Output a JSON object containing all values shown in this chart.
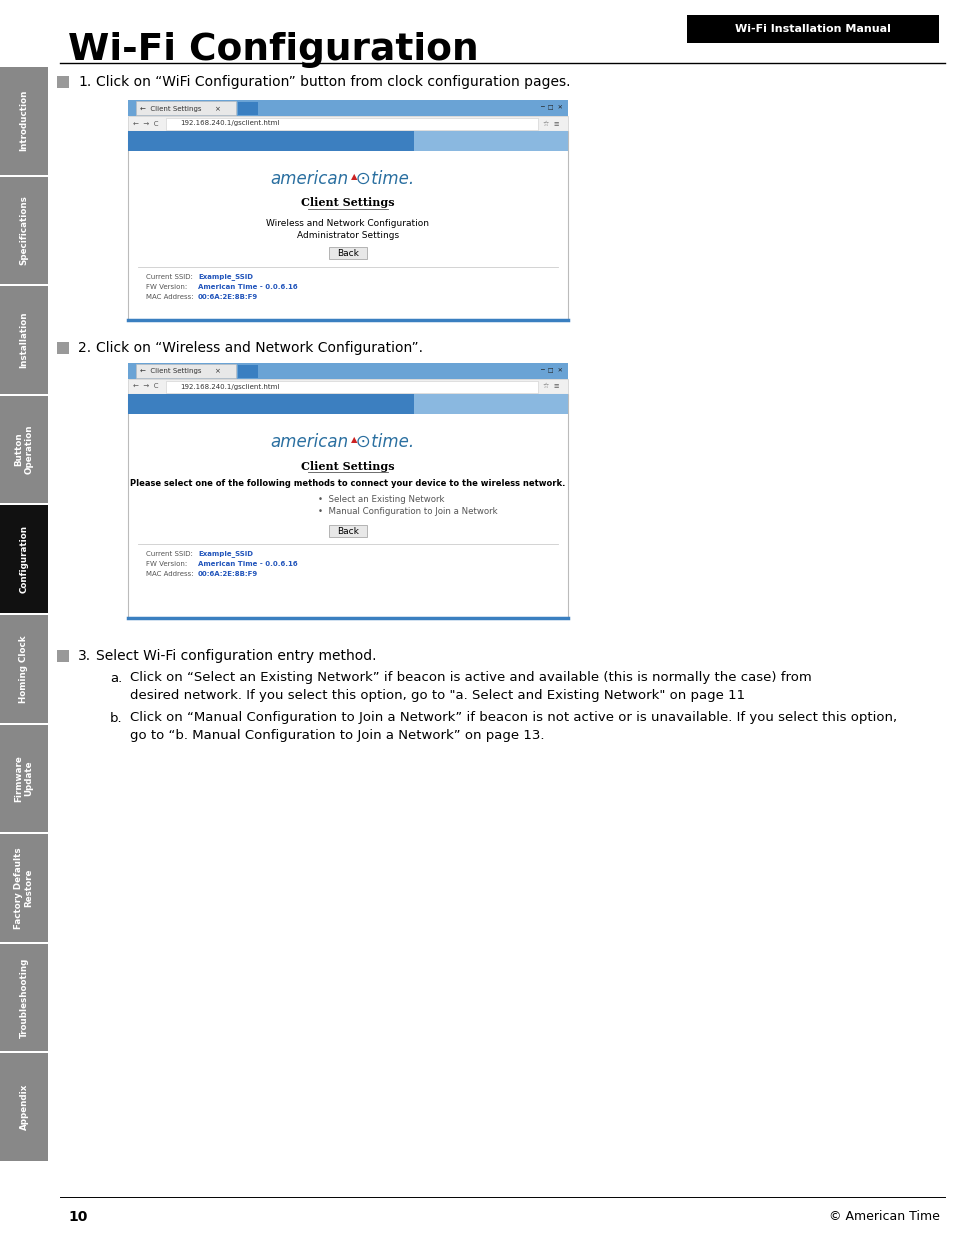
{
  "title": "Wi-Fi Configuration",
  "header_badge": "Wi-Fi Installation Manual",
  "page_number": "10",
  "copyright": "© American Time",
  "background_color": "#ffffff",
  "sidebar_tabs": [
    {
      "label": "Introduction",
      "active": false
    },
    {
      "label": "Specifications",
      "active": false
    },
    {
      "label": "Installation",
      "active": false
    },
    {
      "label": "Button\nOperation",
      "active": false
    },
    {
      "label": "Configuration",
      "active": true
    },
    {
      "label": "Homing Clock",
      "active": false
    },
    {
      "label": "Firmware\nUpdate",
      "active": false
    },
    {
      "label": "Factory Defaults\nRestore",
      "active": false
    },
    {
      "label": "Troubleshooting",
      "active": false
    },
    {
      "label": "Appendix",
      "active": false
    }
  ],
  "sidebar_color_inactive": "#888888",
  "sidebar_color_active": "#111111",
  "steps": [
    {
      "number": "1.",
      "text": "Click on “WiFi Configuration” button from clock configuration pages."
    },
    {
      "number": "2.",
      "text": "Click on “Wireless and Network Configuration”."
    },
    {
      "number": "3.",
      "text": "Select Wi-Fi configuration entry method."
    }
  ],
  "substep_a_line1": "Click on “Select an Existing Network” if beacon is active and available (this is normally the case) from",
  "substep_a_line2": "desired network. If you select this option, go to \"a. Select and Existing Network\" on page 11",
  "substep_b_line1": "Click on “Manual Configuration to Join a Network” if beacon is not active or is unavailable. If you select this option,",
  "substep_b_line2": "go to “b. Manual Configuration to Join a Network” on page 13.",
  "ss1": {
    "tab_label": "←  Client Settings      ×",
    "url": "192.168.240.1/gsclient.html",
    "logo_left": "american",
    "logo_right": "time.",
    "page_title": "Client Settings",
    "line1": "Wireless and Network Configuration",
    "line2": "Administrator Settings",
    "button": "Back",
    "r1l": "Current SSID:",
    "r1v": "Example_SSID",
    "r2l": "FW Version:",
    "r2v": "American Time - 0.0.6.16",
    "r3l": "MAC Address:",
    "r3v": "00:6A:2E:8B:F9"
  },
  "ss2": {
    "tab_label": "←  Client Settings      ×",
    "url": "192.168.240.1/gsclient.html",
    "logo_left": "american",
    "logo_right": "time.",
    "page_title": "Client Settings",
    "body": "Please select one of the following methods to connect your device to the wireless network.",
    "opt1": "•  Select an Existing Network",
    "opt2": "•  Manual Configuration to Join a Network",
    "button": "Back",
    "r1l": "Current SSID:",
    "r1v": "Example_SSID",
    "r2l": "FW Version:",
    "r2v": "American Time - 0.0.6.16",
    "r3l": "MAC Address:",
    "r3v": "00:6A:2E:8B:F9"
  }
}
